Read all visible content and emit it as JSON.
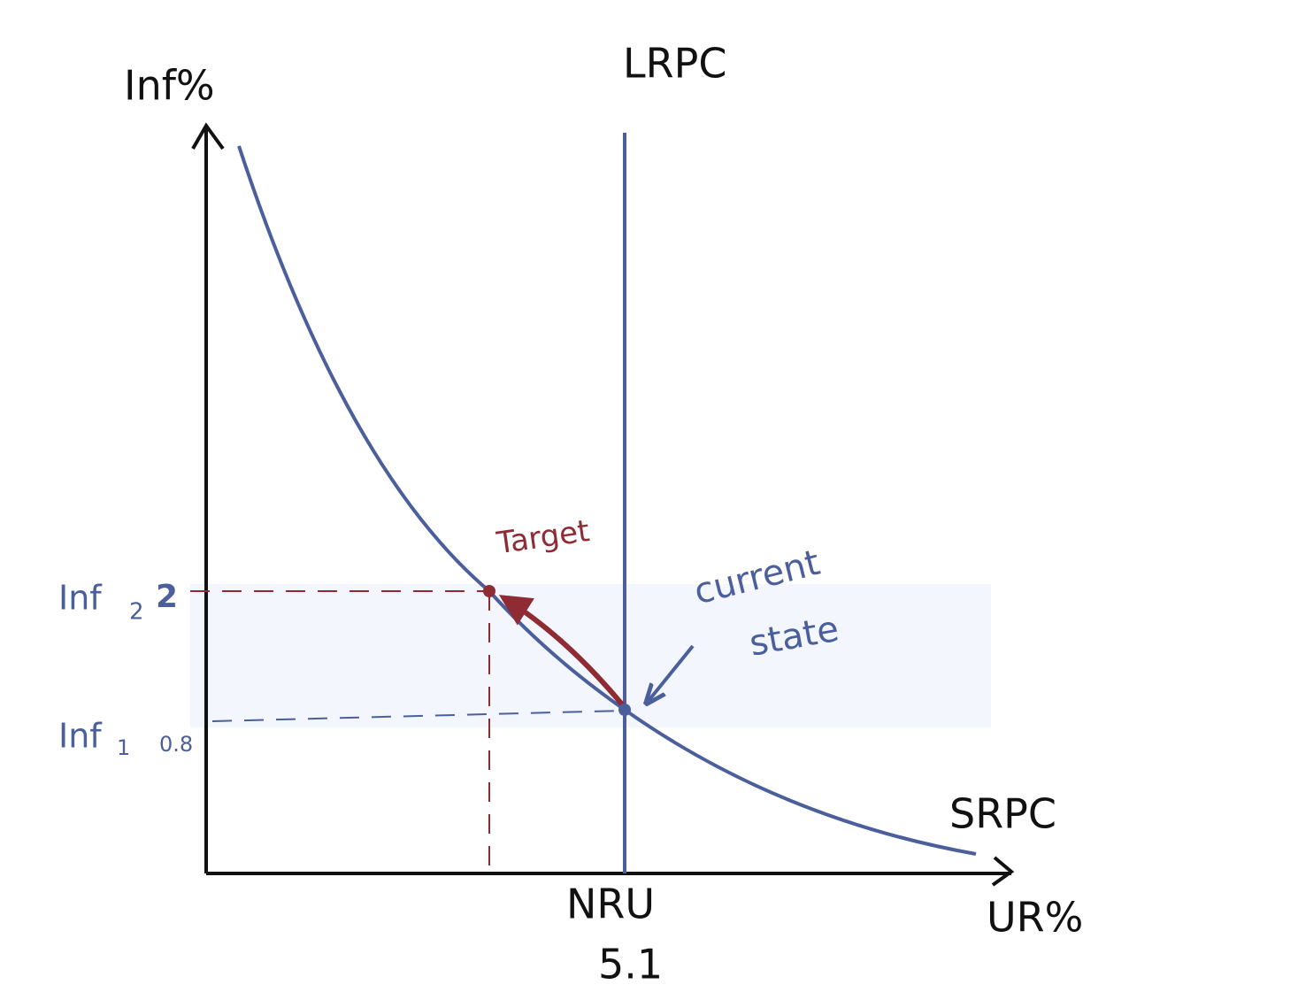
{
  "axes": {
    "y_label": "Inf%",
    "x_label": "UR%"
  },
  "curves": {
    "lrpc": "LRPC",
    "srpc": "SRPC"
  },
  "labels": {
    "nru": "NRU",
    "nru_value": 5.1,
    "inf2": "Inf",
    "inf2_sub": 2,
    "inf2_value": 2,
    "inf1": "Inf",
    "inf1_sub": 1,
    "inf1_value": 0.8,
    "target": "Target",
    "current_state": [
      "current",
      "state"
    ]
  }
}
